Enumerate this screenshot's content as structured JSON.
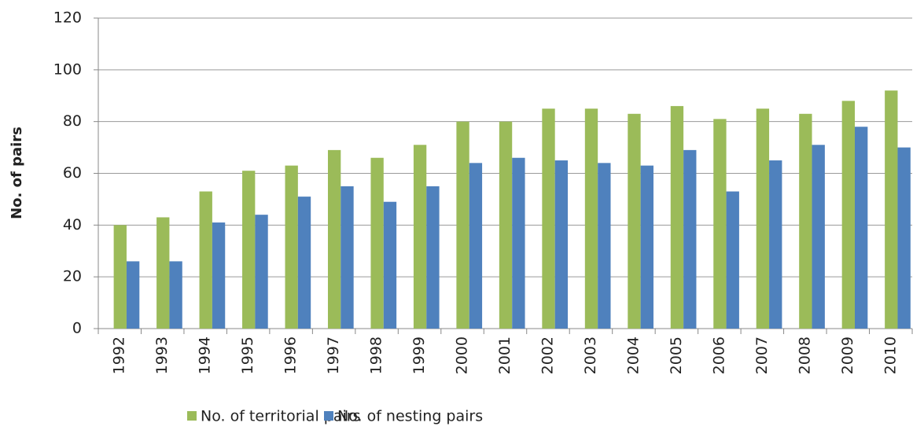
{
  "chart_data": {
    "type": "bar",
    "y_label": "No. of pairs",
    "categories": [
      "1992",
      "1993",
      "1994",
      "1995",
      "1996",
      "1997",
      "1998",
      "1999",
      "2000",
      "2001",
      "2002",
      "2003",
      "2004",
      "2005",
      "2006",
      "2007",
      "2008",
      "2009",
      "2010"
    ],
    "series": [
      {
        "name": "No. of territorial pairs",
        "color": "#9bbb59",
        "values": [
          40,
          43,
          53,
          61,
          63,
          69,
          66,
          71,
          80,
          80,
          85,
          85,
          83,
          86,
          81,
          85,
          83,
          88,
          92
        ]
      },
      {
        "name": "No. of nesting pairs",
        "color": "#4f81bd",
        "values": [
          26,
          26,
          41,
          44,
          51,
          55,
          49,
          55,
          64,
          66,
          65,
          64,
          63,
          69,
          53,
          65,
          71,
          78,
          70
        ]
      }
    ],
    "ylim": [
      0,
      120
    ],
    "yticks": [
      0,
      20,
      40,
      60,
      80,
      100,
      120
    ],
    "grid": true,
    "legend": "bottom"
  }
}
